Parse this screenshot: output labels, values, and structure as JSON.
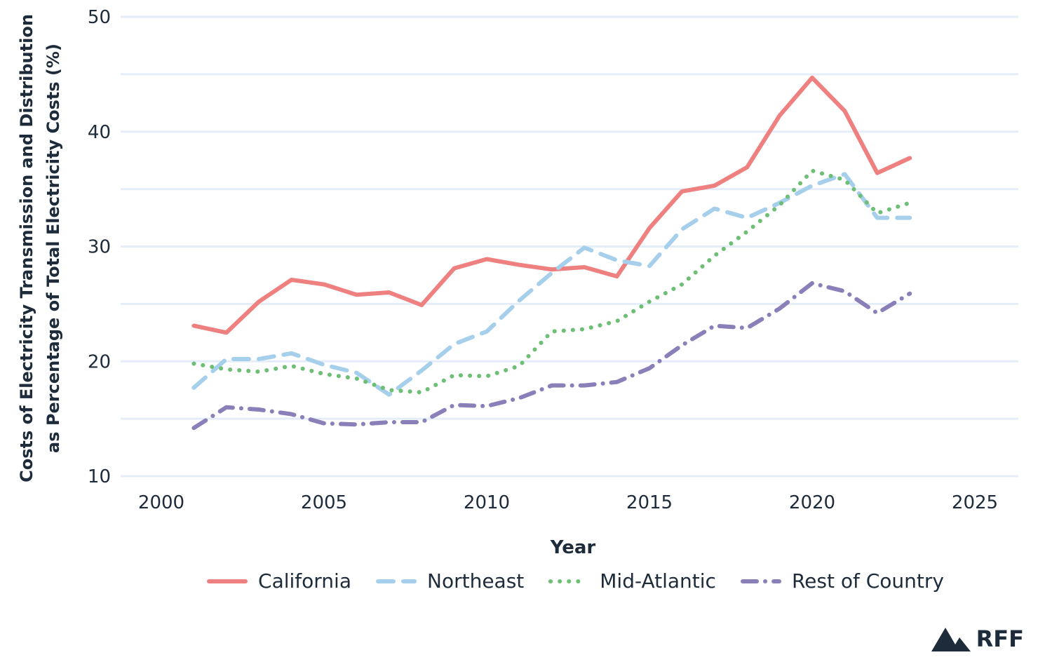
{
  "chart_data": {
    "type": "line",
    "title": "",
    "xlabel": "Year",
    "ylabel_lines": [
      "Costs of Electricity Transmission and Distribution",
      "as Percentage of Total Electricity Costs (%)"
    ],
    "xlim": [
      1999,
      2026.5
    ],
    "ylim": [
      10,
      50
    ],
    "x_ticks": [
      2000,
      2005,
      2010,
      2015,
      2020,
      2025
    ],
    "y_ticks": [
      10,
      20,
      30,
      40,
      50
    ],
    "grid_lines_y": [
      10,
      15,
      20,
      25,
      30,
      35,
      40,
      45,
      50
    ],
    "grid": true,
    "legend_position": "bottom",
    "x": [
      2001,
      2002,
      2003,
      2004,
      2005,
      2006,
      2007,
      2008,
      2009,
      2010,
      2011,
      2012,
      2013,
      2014,
      2015,
      2016,
      2017,
      2018,
      2019,
      2020,
      2021,
      2022,
      2023
    ],
    "series": [
      {
        "name": "California",
        "style": "solid",
        "color": "#ef8080",
        "values": [
          23.1,
          22.5,
          25.2,
          27.1,
          26.7,
          25.8,
          26.0,
          24.9,
          28.1,
          28.9,
          28.4,
          28.0,
          28.2,
          27.4,
          31.6,
          34.8,
          35.3,
          36.9,
          41.4,
          44.7,
          41.8,
          36.4,
          37.7
        ]
      },
      {
        "name": "Northeast",
        "style": "dashed",
        "color": "#a6cfeb",
        "values": [
          17.7,
          20.2,
          20.2,
          20.7,
          19.7,
          19.0,
          17.1,
          19.2,
          21.5,
          22.6,
          25.3,
          27.7,
          29.9,
          28.8,
          28.3,
          31.5,
          33.3,
          32.5,
          33.8,
          35.3,
          36.3,
          32.5,
          32.5
        ]
      },
      {
        "name": "Mid-Atlantic",
        "style": "dotted",
        "color": "#6dbf75",
        "values": [
          19.8,
          19.3,
          19.1,
          19.6,
          18.9,
          18.5,
          17.5,
          17.3,
          18.8,
          18.7,
          19.6,
          22.6,
          22.8,
          23.5,
          25.2,
          26.7,
          29.2,
          31.3,
          33.6,
          36.6,
          35.8,
          32.9,
          33.8
        ]
      },
      {
        "name": "Rest of Country",
        "style": "dashdot",
        "color": "#8a7fb8",
        "values": [
          14.2,
          16.0,
          15.8,
          15.4,
          14.6,
          14.5,
          14.7,
          14.7,
          16.2,
          16.1,
          16.8,
          17.9,
          17.9,
          18.2,
          19.4,
          21.4,
          23.1,
          22.9,
          24.6,
          26.8,
          26.1,
          24.2,
          25.9
        ]
      }
    ]
  },
  "logo": {
    "text": "RFF"
  }
}
